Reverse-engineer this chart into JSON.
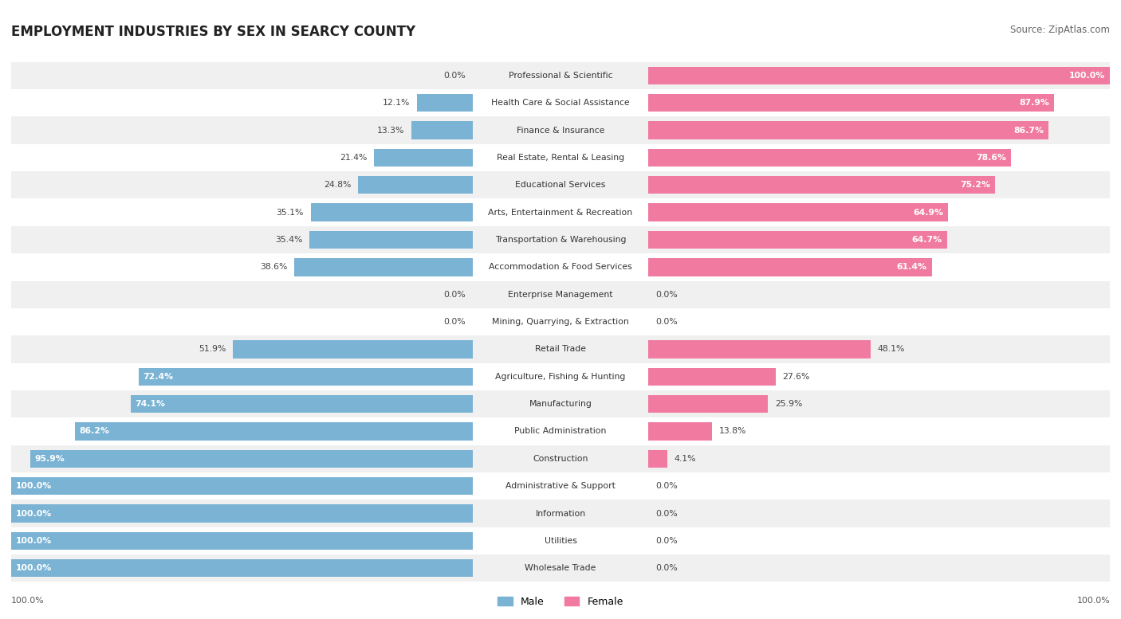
{
  "title": "EMPLOYMENT INDUSTRIES BY SEX IN SEARCY COUNTY",
  "source": "Source: ZipAtlas.com",
  "categories": [
    "Wholesale Trade",
    "Utilities",
    "Information",
    "Administrative & Support",
    "Construction",
    "Public Administration",
    "Manufacturing",
    "Agriculture, Fishing & Hunting",
    "Retail Trade",
    "Mining, Quarrying, & Extraction",
    "Enterprise Management",
    "Accommodation & Food Services",
    "Transportation & Warehousing",
    "Arts, Entertainment & Recreation",
    "Educational Services",
    "Real Estate, Rental & Leasing",
    "Finance & Insurance",
    "Health Care & Social Assistance",
    "Professional & Scientific"
  ],
  "male": [
    100.0,
    100.0,
    100.0,
    100.0,
    95.9,
    86.2,
    74.1,
    72.4,
    51.9,
    0.0,
    0.0,
    38.6,
    35.4,
    35.1,
    24.8,
    21.4,
    13.3,
    12.1,
    0.0
  ],
  "female": [
    0.0,
    0.0,
    0.0,
    0.0,
    4.1,
    13.8,
    25.9,
    27.6,
    48.1,
    0.0,
    0.0,
    61.4,
    64.7,
    64.9,
    75.2,
    78.6,
    86.7,
    87.9,
    100.0
  ],
  "male_color": "#7ab3d4",
  "female_color": "#f07aa0",
  "bg_row_even": "#f0f0f0",
  "bg_row_odd": "#ffffff",
  "title_fontsize": 12,
  "source_fontsize": 8.5,
  "label_fontsize": 7.8,
  "value_fontsize": 7.8
}
